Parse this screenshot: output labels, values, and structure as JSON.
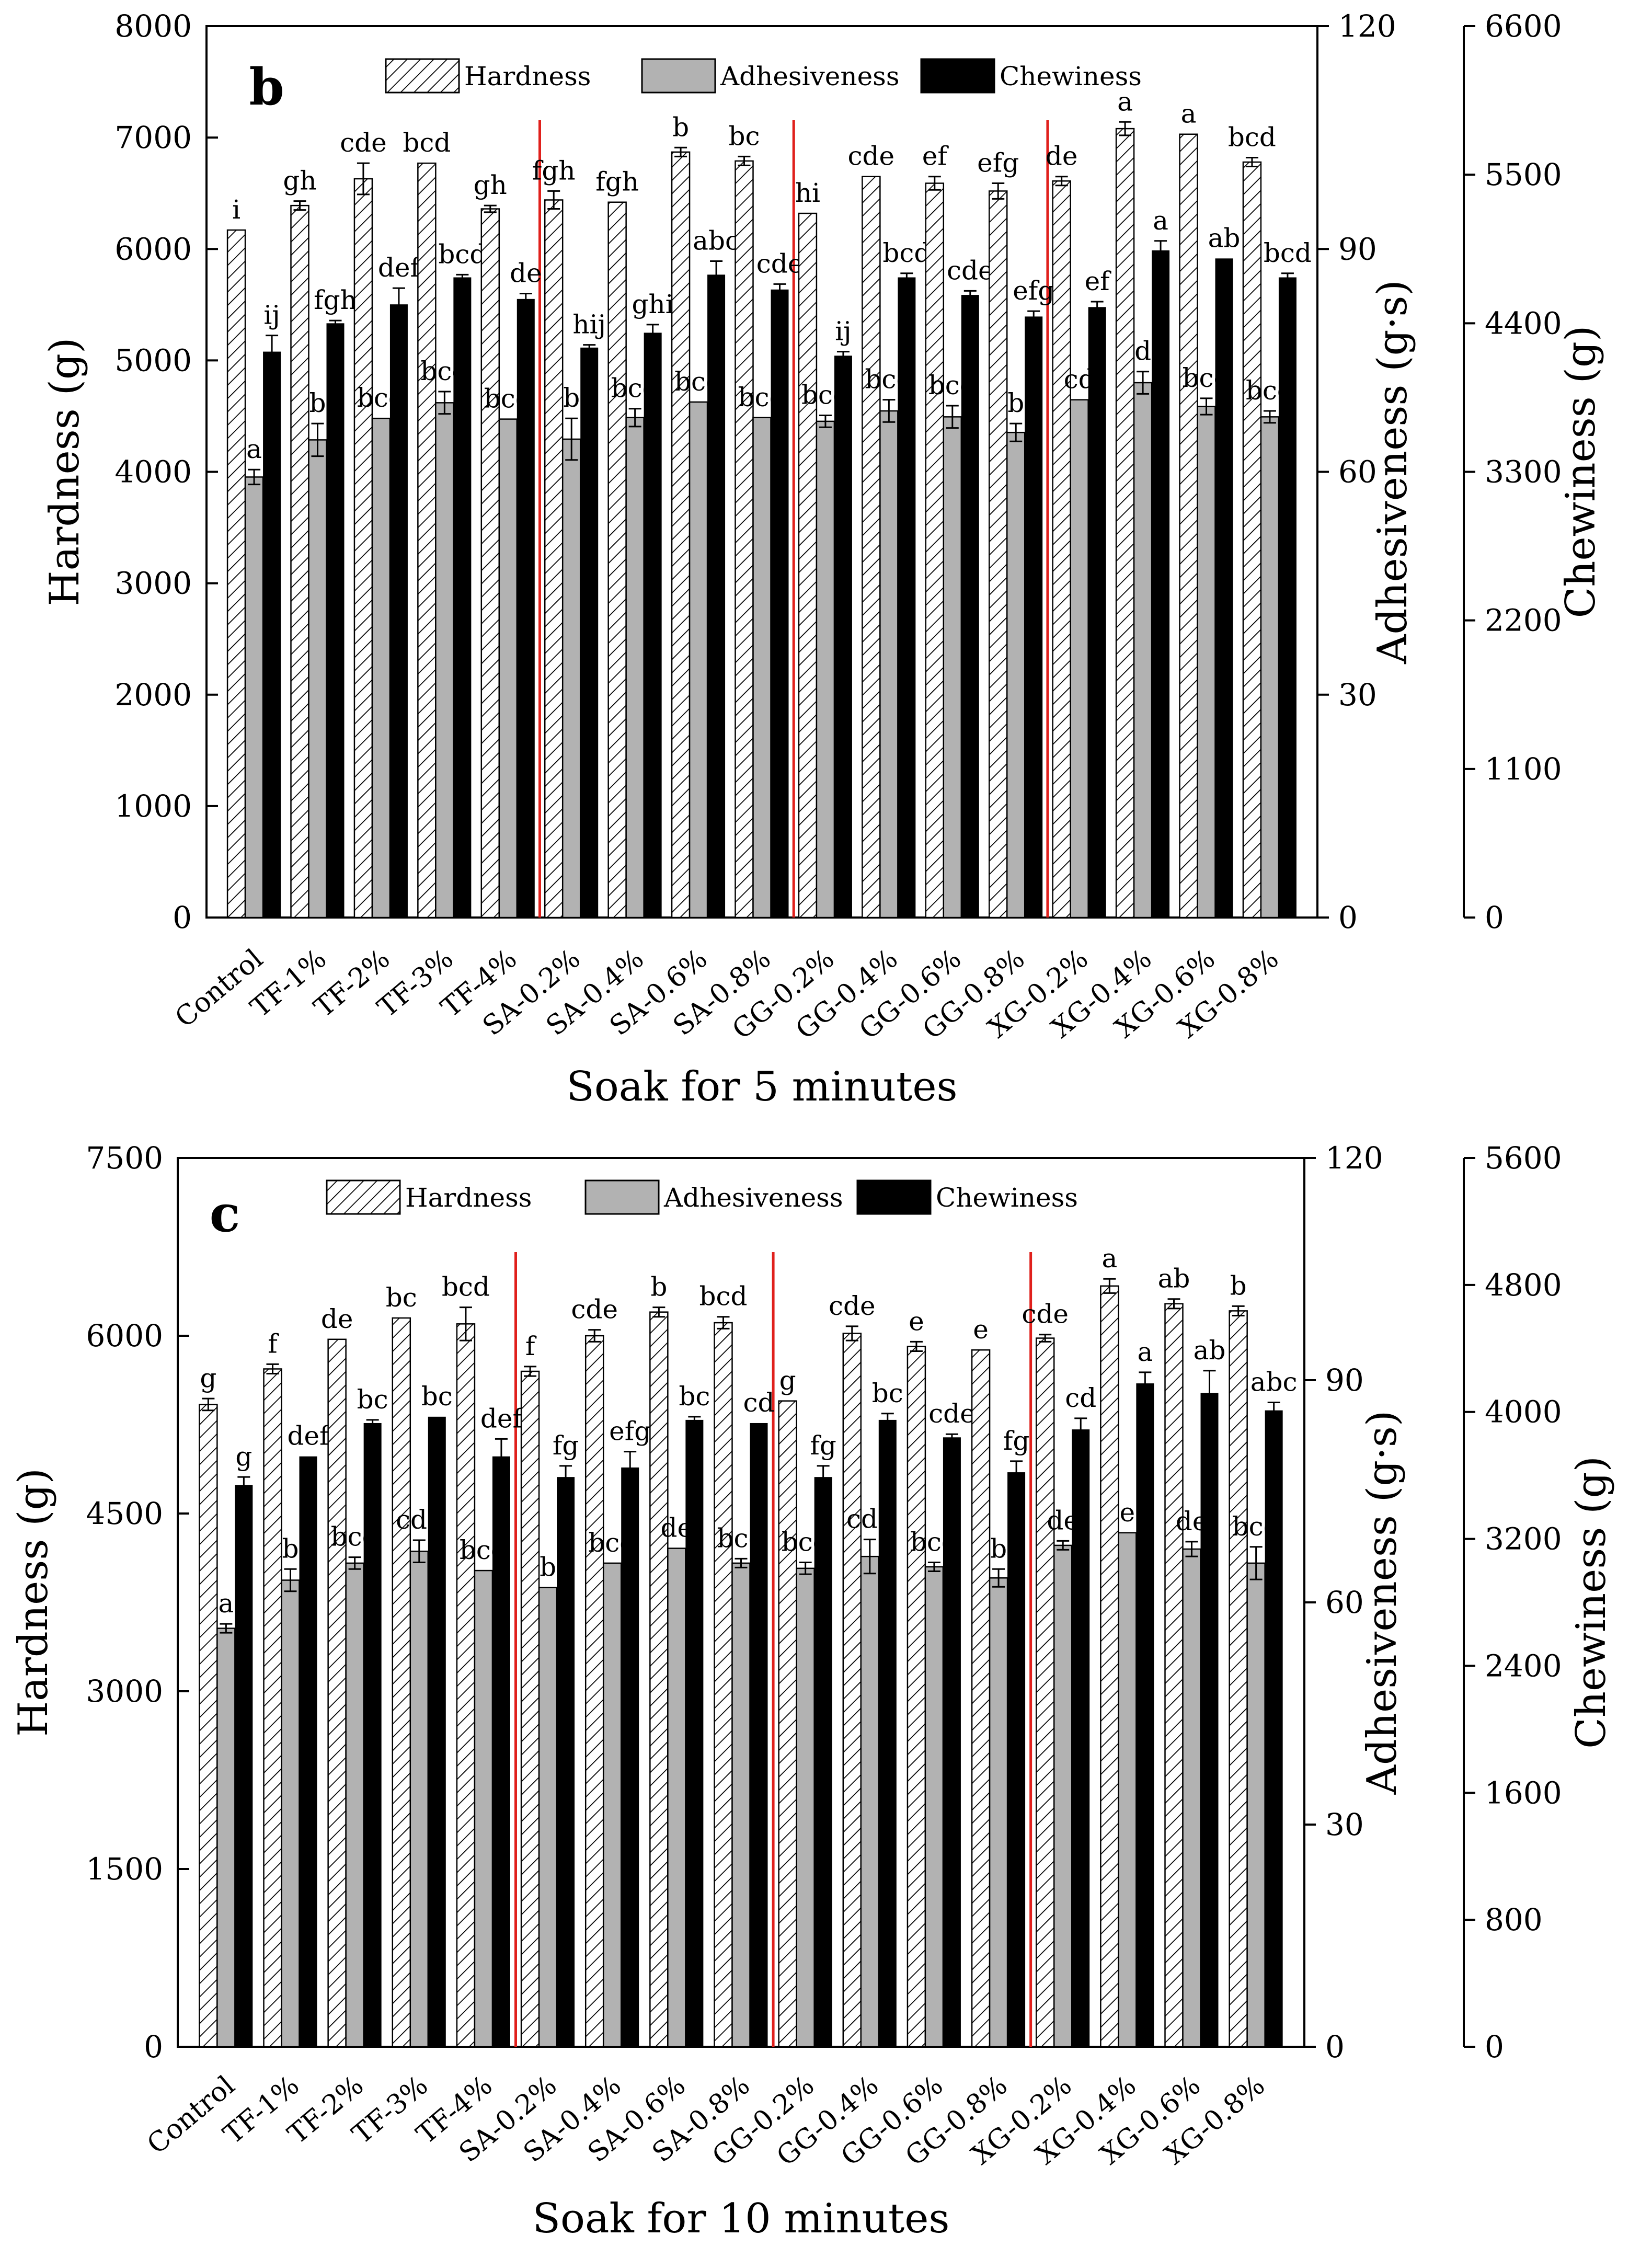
{
  "chart_data": [
    {
      "type": "bar",
      "panel_label": "b",
      "xlabel": "Soak for 5 minutes",
      "categories": [
        "Control",
        "TF-1%",
        "TF-2%",
        "TF-3%",
        "TF-4%",
        "SA-0.2%",
        "SA-0.4%",
        "SA-0.6%",
        "SA-0.8%",
        "GG-0.2%",
        "GG-0.4%",
        "GG-0.6%",
        "GG-0.8%",
        "XG-0.2%",
        "XG-0.4%",
        "XG-0.6%",
        "XG-0.8%"
      ],
      "group_dividers_after": [
        4,
        8,
        12
      ],
      "axes": [
        {
          "label": "Hardness (g)",
          "min": 0,
          "max": 8000,
          "ticks": [
            0,
            1000,
            2000,
            3000,
            4000,
            5000,
            6000,
            7000,
            8000
          ]
        },
        {
          "label": "Adhesiveness (g·s)",
          "min": 0,
          "max": 120,
          "ticks": [
            0,
            30,
            60,
            90,
            120
          ]
        },
        {
          "label": "Chewiness (g)",
          "min": 0,
          "max": 6600,
          "ticks": [
            0,
            1100,
            2200,
            3300,
            4400,
            5500,
            6600
          ]
        }
      ],
      "series": [
        {
          "name": "Hardness",
          "axis": 0,
          "values": [
            6170,
            6390,
            6630,
            6770,
            6360,
            6440,
            6420,
            6870,
            6790,
            6320,
            6650,
            6590,
            6520,
            6610,
            7080,
            7030,
            6780
          ],
          "errors": [
            0,
            40,
            140,
            0,
            30,
            80,
            0,
            40,
            40,
            0,
            0,
            60,
            70,
            40,
            60,
            0,
            40
          ],
          "letters": [
            "i",
            "gh",
            "cde",
            "bcd",
            "gh",
            "fgh",
            "fgh",
            "b",
            "bc",
            "hi",
            "cde",
            "ef",
            "efg",
            "de",
            "a",
            "a",
            "bcd"
          ]
        },
        {
          "name": "Adhesiveness",
          "axis": 1,
          "values": [
            59.3,
            64.3,
            67.2,
            69.3,
            67.1,
            64.4,
            67.3,
            69.4,
            67.3,
            66.8,
            68.2,
            67.4,
            65.3,
            69.7,
            72.0,
            68.8,
            67.4
          ],
          "errors": [
            1.0,
            2.2,
            0,
            1.5,
            0,
            2.8,
            1.2,
            0,
            0,
            0.8,
            1.5,
            1.5,
            1.2,
            0,
            1.5,
            1.1,
            0.8
          ],
          "letters": [
            "a",
            "b",
            "bcd",
            "bcd",
            "bcd",
            "b",
            "bcd",
            "bcd",
            "bcd",
            "bcd",
            "bcd",
            "bcd",
            "b",
            "cd",
            "d",
            "bcd",
            "bcd"
          ]
        },
        {
          "name": "Chewiness",
          "axis": 2,
          "values": [
            4190,
            4400,
            4540,
            4740,
            4580,
            4220,
            4330,
            4760,
            4650,
            4160,
            4740,
            4610,
            4450,
            4520,
            4940,
            4880,
            4740
          ],
          "errors": [
            120,
            20,
            120,
            20,
            40,
            20,
            60,
            100,
            40,
            30,
            30,
            30,
            40,
            40,
            70,
            0,
            30
          ],
          "letters": [
            "ij",
            "fgh",
            "def",
            "bcd",
            "de",
            "hij",
            "ghi",
            "abc",
            "cde",
            "ij",
            "bcd",
            "cde",
            "efg",
            "ef",
            "a",
            "ab",
            "bcd"
          ]
        }
      ]
    },
    {
      "type": "bar",
      "panel_label": "c",
      "xlabel": "Soak for 10 minutes",
      "categories": [
        "Control",
        "TF-1%",
        "TF-2%",
        "TF-3%",
        "TF-4%",
        "SA-0.2%",
        "SA-0.4%",
        "SA-0.6%",
        "SA-0.8%",
        "GG-0.2%",
        "GG-0.4%",
        "GG-0.6%",
        "GG-0.8%",
        "XG-0.2%",
        "XG-0.4%",
        "XG-0.6%",
        "XG-0.8%"
      ],
      "group_dividers_after": [
        4,
        8,
        12
      ],
      "axes": [
        {
          "label": "Hardness (g)",
          "min": 0,
          "max": 7500,
          "ticks": [
            0,
            1500,
            3000,
            4500,
            6000,
            7500
          ]
        },
        {
          "label": "Adhesiveness (g·s)",
          "min": 0,
          "max": 120,
          "ticks": [
            0,
            30,
            60,
            90,
            120
          ]
        },
        {
          "label": "Chewiness (g)",
          "min": 0,
          "max": 5600,
          "ticks": [
            0,
            800,
            1600,
            2400,
            3200,
            4000,
            4800,
            5600
          ]
        }
      ],
      "series": [
        {
          "name": "Hardness",
          "axis": 0,
          "values": [
            5420,
            5720,
            5970,
            6150,
            6100,
            5700,
            6000,
            6200,
            6110,
            5450,
            6020,
            5910,
            5880,
            5980,
            6420,
            6270,
            6210
          ],
          "errors": [
            50,
            40,
            0,
            0,
            140,
            40,
            50,
            40,
            50,
            0,
            60,
            40,
            0,
            30,
            60,
            40,
            40
          ],
          "letters": [
            "g",
            "f",
            "de",
            "bc",
            "bcd",
            "f",
            "cde",
            "b",
            "bcd",
            "g",
            "cde",
            "e",
            "e",
            "cde",
            "a",
            "ab",
            "b"
          ]
        },
        {
          "name": "Adhesiveness",
          "axis": 1,
          "values": [
            56.5,
            63.0,
            65.3,
            66.9,
            64.3,
            62.0,
            65.3,
            67.3,
            65.3,
            64.6,
            66.2,
            64.8,
            63.3,
            67.7,
            69.4,
            67.2,
            65.3
          ],
          "errors": [
            0.6,
            1.5,
            0.8,
            1.5,
            0,
            0,
            0,
            0,
            0.6,
            0.8,
            2.3,
            0.6,
            1.2,
            0.6,
            0,
            1.0,
            2.2
          ],
          "letters": [
            "a",
            "b",
            "bcd",
            "cde",
            "bcd",
            "b",
            "bcd",
            "de",
            "bcd",
            "bcd",
            "cde",
            "bcd",
            "b",
            "de",
            "e",
            "de",
            "bcd"
          ]
        },
        {
          "name": "Chewiness",
          "axis": 2,
          "values": [
            3540,
            3720,
            3930,
            3970,
            3720,
            3590,
            3650,
            3950,
            3930,
            3590,
            3950,
            3840,
            3620,
            3890,
            4180,
            4120,
            4010
          ],
          "errors": [
            50,
            0,
            20,
            0,
            110,
            70,
            100,
            20,
            0,
            70,
            40,
            20,
            70,
            70,
            70,
            140,
            50
          ],
          "letters": [
            "g",
            "def",
            "bc",
            "bc",
            "def",
            "fg",
            "efg",
            "bc",
            "cd",
            "fg",
            "bc",
            "cde",
            "fg",
            "cd",
            "a",
            "ab",
            "abc"
          ]
        }
      ]
    }
  ],
  "legend": [
    "Hardness",
    "Adhesiveness",
    "Chewiness"
  ],
  "colors": {
    "adhesiveness": "#b2b2b2",
    "chewiness": "#000000",
    "divider": "#e0201c",
    "axis": "#000000"
  }
}
